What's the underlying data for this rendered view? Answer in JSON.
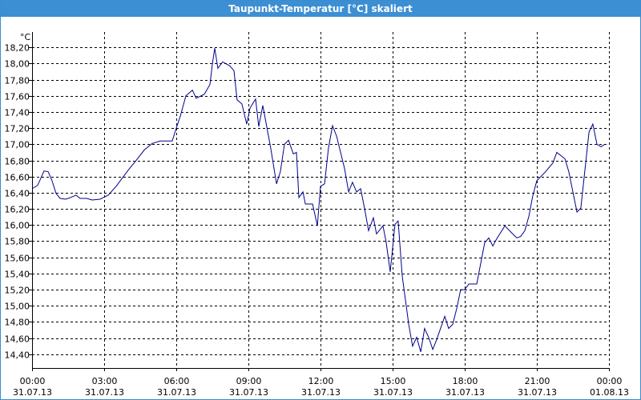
{
  "chart_data": {
    "type": "line",
    "title": "Taupunkt-Temperatur [°C] skaliert",
    "y_unit": "°C",
    "color": "#00008b",
    "grid": true,
    "xlim": [
      0,
      24
    ],
    "ylim": [
      14.23,
      18.39
    ],
    "xticks": [
      {
        "value": 0,
        "label": "00:00"
      },
      {
        "value": 3,
        "label": "03:00"
      },
      {
        "value": 6,
        "label": "06:00"
      },
      {
        "value": 9,
        "label": "09:00"
      },
      {
        "value": 12,
        "label": "12:00"
      },
      {
        "value": 15,
        "label": "15:00"
      },
      {
        "value": 18,
        "label": "18:00"
      },
      {
        "value": 21,
        "label": "21:00"
      },
      {
        "value": 24,
        "label": "00:00"
      }
    ],
    "xtick_dates": [
      "31.07.13",
      "31.07.13",
      "31.07.13",
      "31.07.13",
      "31.07.13",
      "31.07.13",
      "31.07.13",
      "31.07.13",
      "01.08.13"
    ],
    "yticks": [
      {
        "value": 14.4,
        "label": "14,40"
      },
      {
        "value": 14.6,
        "label": "14,60"
      },
      {
        "value": 14.8,
        "label": "14,80"
      },
      {
        "value": 15.0,
        "label": "15,00"
      },
      {
        "value": 15.2,
        "label": "15,20"
      },
      {
        "value": 15.4,
        "label": "15,40"
      },
      {
        "value": 15.6,
        "label": "15,60"
      },
      {
        "value": 15.8,
        "label": "15,80"
      },
      {
        "value": 16.0,
        "label": "16,00"
      },
      {
        "value": 16.2,
        "label": "16,20"
      },
      {
        "value": 16.4,
        "label": "16,40"
      },
      {
        "value": 16.6,
        "label": "16,60"
      },
      {
        "value": 16.8,
        "label": "16,80"
      },
      {
        "value": 17.0,
        "label": "17,00"
      },
      {
        "value": 17.2,
        "label": "17,20"
      },
      {
        "value": 17.4,
        "label": "17,40"
      },
      {
        "value": 17.6,
        "label": "17,60"
      },
      {
        "value": 17.8,
        "label": "17,80"
      },
      {
        "value": 18.0,
        "label": "18,00"
      },
      {
        "value": 18.2,
        "label": "18,20"
      }
    ],
    "x": [
      0,
      0.23,
      0.5,
      0.67,
      0.83,
      1.0,
      1.17,
      1.4,
      1.6,
      1.83,
      2.0,
      2.27,
      2.5,
      2.83,
      3.17,
      3.5,
      4.0,
      4.33,
      4.67,
      5.0,
      5.33,
      5.83,
      6.0,
      6.17,
      6.4,
      6.67,
      6.83,
      7.17,
      7.4,
      7.5,
      7.6,
      7.73,
      7.93,
      8.23,
      8.4,
      8.53,
      8.73,
      8.93,
      9.07,
      9.3,
      9.43,
      9.6,
      9.93,
      10.17,
      10.33,
      10.5,
      10.67,
      10.87,
      11.0,
      11.1,
      11.27,
      11.37,
      11.67,
      11.87,
      12.0,
      12.17,
      12.33,
      12.5,
      12.67,
      13.0,
      13.17,
      13.33,
      13.5,
      13.67,
      13.83,
      14.0,
      14.2,
      14.33,
      14.6,
      14.73,
      14.9,
      15.1,
      15.23,
      15.4,
      15.67,
      15.83,
      16.0,
      16.17,
      16.33,
      16.5,
      16.67,
      16.83,
      17.17,
      17.33,
      17.5,
      17.67,
      17.83,
      18.0,
      18.17,
      18.5,
      18.83,
      19.0,
      19.17,
      19.33,
      19.67,
      19.93,
      20.17,
      20.33,
      20.5,
      20.67,
      20.83,
      21.0,
      21.33,
      21.67,
      21.83,
      22.17,
      22.33,
      22.67,
      22.83,
      23.17,
      23.33,
      23.5,
      23.67,
      23.83
    ],
    "values": [
      16.45,
      16.49,
      16.67,
      16.66,
      16.55,
      16.39,
      16.33,
      16.32,
      16.34,
      16.37,
      16.33,
      16.33,
      16.31,
      16.32,
      16.37,
      16.48,
      16.68,
      16.8,
      16.93,
      17.01,
      17.04,
      17.04,
      17.2,
      17.35,
      17.6,
      17.67,
      17.57,
      17.62,
      17.74,
      17.99,
      18.19,
      17.94,
      18.02,
      17.97,
      17.91,
      17.55,
      17.5,
      17.25,
      17.45,
      17.56,
      17.22,
      17.48,
      16.95,
      16.51,
      16.66,
      17.0,
      17.05,
      16.88,
      16.9,
      16.34,
      16.41,
      16.26,
      16.26,
      15.99,
      16.48,
      16.51,
      16.95,
      17.23,
      17.1,
      16.7,
      16.41,
      16.53,
      16.41,
      16.45,
      16.21,
      15.93,
      16.09,
      15.89,
      15.99,
      15.79,
      15.42,
      16.01,
      16.05,
      15.37,
      14.77,
      14.5,
      14.61,
      14.43,
      14.72,
      14.61,
      14.46,
      14.58,
      14.87,
      14.72,
      14.77,
      14.97,
      15.2,
      15.2,
      15.27,
      15.27,
      15.78,
      15.84,
      15.74,
      15.83,
      15.99,
      15.91,
      15.84,
      15.86,
      15.93,
      16.11,
      16.36,
      16.55,
      16.65,
      16.77,
      16.9,
      16.82,
      16.66,
      16.16,
      16.21,
      17.15,
      17.25,
      17.0,
      16.97,
      17.0
    ]
  }
}
